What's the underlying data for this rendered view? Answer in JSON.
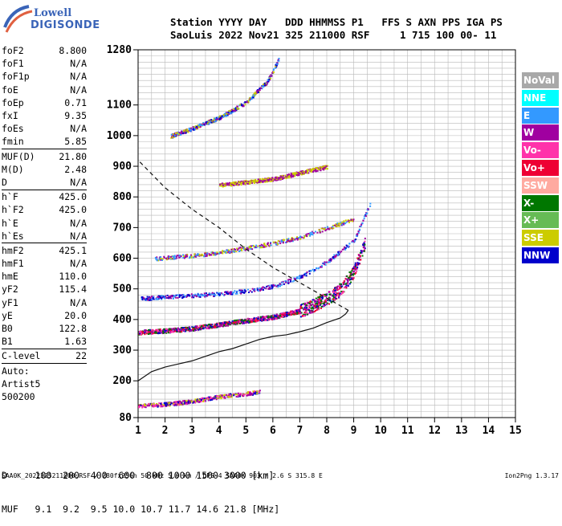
{
  "header": {
    "line1": "Station YYYY DAY   DDD HHMMSS P1   FFS S AXN PPS IGA PS",
    "line2": "SaoLuis 2022 Nov21 325 211000 RSF     1 715 100 00- 11"
  },
  "logo": {
    "line1": "Lowell",
    "line2": "DIGISONDE"
  },
  "params": [
    {
      "label": "foF2",
      "value": "8.800"
    },
    {
      "label": "foF1",
      "value": "N/A"
    },
    {
      "label": "foF1p",
      "value": "N/A"
    },
    {
      "label": "foE",
      "value": "N/A"
    },
    {
      "label": "foEp",
      "value": "0.71"
    },
    {
      "label": "fxI",
      "value": "9.35"
    },
    {
      "label": "foEs",
      "value": "N/A"
    },
    {
      "label": "fmin",
      "value": "5.85"
    },
    {
      "sep": true
    },
    {
      "label": "MUF(D)",
      "value": "21.80"
    },
    {
      "label": "M(D)",
      "value": "2.48"
    },
    {
      "label": "D",
      "value": "N/A"
    },
    {
      "sep": true
    },
    {
      "label": "h`F",
      "value": "425.0"
    },
    {
      "label": "h`F2",
      "value": "425.0"
    },
    {
      "label": "h`E",
      "value": "N/A"
    },
    {
      "label": "h`Es",
      "value": "N/A"
    },
    {
      "sep": true
    },
    {
      "label": "hmF2",
      "value": "425.1"
    },
    {
      "label": "hmF1",
      "value": "N/A"
    },
    {
      "label": "hmE",
      "value": "110.0"
    },
    {
      "label": "yF2",
      "value": "115.4"
    },
    {
      "label": "yF1",
      "value": "N/A"
    },
    {
      "label": "yE",
      "value": "20.0"
    },
    {
      "label": "B0",
      "value": "122.8"
    },
    {
      "label": "B1",
      "value": "1.63"
    },
    {
      "sep": true
    },
    {
      "label": "C-level",
      "value": "22"
    },
    {
      "sep": true
    },
    {
      "label": "Auto:",
      "value": ""
    },
    {
      "label": "Artist5",
      "value": ""
    },
    {
      "label": "500200",
      "value": ""
    }
  ],
  "legend": [
    {
      "name": "NoVal",
      "color": "#a8a8a8"
    },
    {
      "name": "NNE",
      "color": "#00ffff"
    },
    {
      "name": "E",
      "color": "#3399ff"
    },
    {
      "name": "W",
      "color": "#a000a0"
    },
    {
      "name": "Vo-",
      "color": "#ff33aa"
    },
    {
      "name": "Vo+",
      "color": "#ee0033"
    },
    {
      "name": "SSW",
      "color": "#ffaaa0"
    },
    {
      "name": "X-",
      "color": "#007700"
    },
    {
      "name": "X+",
      "color": "#66bb55"
    },
    {
      "name": "SSE",
      "color": "#cccc00"
    },
    {
      "name": "NNW",
      "color": "#0000cc"
    }
  ],
  "table": {
    "line1": "D     100  200  400  600  800 1000 1500 3000 [km]",
    "line2": "MUF   9.1  9.2  9.5 10.0 10.7 11.7 14.6 21.8 [MHz]"
  },
  "footer": "SAA0K_2022325211000.RSF / 280fx256h 50 kHz 5.0 km / DPS-4 SAA0K 903 / 2.6 S 315.8 E",
  "footer_right": "Ion2Png 1.3.17",
  "chart_data": {
    "type": "scatter",
    "title": "",
    "xlabel": "",
    "ylabel": "",
    "xlim": [
      1,
      15
    ],
    "ylim": [
      80,
      1280
    ],
    "xticks": [
      1,
      2,
      3,
      4,
      5,
      6,
      7,
      8,
      9,
      10,
      11,
      12,
      13,
      14,
      15
    ],
    "yticks": [
      80,
      200,
      300,
      400,
      500,
      600,
      700,
      800,
      900,
      1000,
      1100,
      1280
    ],
    "grid": true,
    "echo_traces": [
      {
        "name": "F2 trace",
        "color_mix": [
          "#007700",
          "#ff33aa",
          "#ee0033",
          "#0000cc",
          "#a000a0"
        ],
        "x": [
          1.0,
          2.0,
          3.0,
          4.0,
          5.0,
          6.0,
          7.0,
          7.5,
          8.0,
          8.5,
          9.0,
          9.4
        ],
        "y": [
          360,
          365,
          372,
          385,
          398,
          410,
          430,
          448,
          470,
          500,
          560,
          650
        ]
      },
      {
        "name": "F2 second multiple",
        "color_mix": [
          "#a000a0",
          "#0000cc",
          "#3399ff"
        ],
        "x": [
          1.1,
          2.0,
          3.0,
          4.0,
          5.0,
          6.0,
          7.0,
          8.0,
          9.0,
          9.6
        ],
        "y": [
          470,
          475,
          480,
          485,
          495,
          510,
          540,
          590,
          660,
          780
        ]
      },
      {
        "name": "F2 third multiple",
        "color_mix": [
          "#a000a0",
          "#3399ff",
          "#cccc00"
        ],
        "x": [
          1.6,
          3.0,
          4.0,
          5.0,
          6.0,
          7.0,
          8.0,
          9.0
        ],
        "y": [
          600,
          610,
          620,
          635,
          650,
          670,
          700,
          730
        ]
      },
      {
        "name": "F2 fourth multiple",
        "color_mix": [
          "#a000a0",
          "#cccc00"
        ],
        "x": [
          4.0,
          5.0,
          6.0,
          7.0,
          8.0
        ],
        "y": [
          840,
          850,
          860,
          880,
          900
        ]
      },
      {
        "name": "high trace",
        "color_mix": [
          "#a000a0",
          "#0000cc",
          "#cccc00",
          "#3399ff"
        ],
        "x": [
          2.2,
          3.0,
          4.0,
          5.0,
          5.8,
          6.2
        ],
        "y": [
          1000,
          1025,
          1060,
          1110,
          1180,
          1250
        ]
      },
      {
        "name": "Es layer",
        "color_mix": [
          "#cccc00",
          "#ff33aa",
          "#0000cc",
          "#a000a0"
        ],
        "x": [
          1.0,
          2.0,
          3.0,
          4.0,
          5.0,
          5.5
        ],
        "y": [
          120,
          125,
          135,
          150,
          160,
          165
        ]
      }
    ],
    "profile": {
      "name": "electron density profile",
      "x": [
        1.0,
        1.5,
        2.0,
        2.5,
        3.0,
        3.5,
        4.0,
        4.5,
        5.0,
        5.5,
        6.0,
        6.5,
        7.0,
        7.5,
        8.0,
        8.5,
        8.7,
        8.8
      ],
      "y": [
        200,
        230,
        245,
        255,
        265,
        280,
        295,
        305,
        320,
        335,
        345,
        350,
        360,
        372,
        390,
        405,
        418,
        430
      ]
    },
    "profile_topside": {
      "name": "topside extrapolation",
      "x": [
        8.8,
        8.0,
        7.0,
        6.0,
        5.0,
        4.0,
        3.0,
        2.0,
        1.0
      ],
      "y": [
        430,
        470,
        520,
        570,
        630,
        700,
        760,
        830,
        920
      ]
    }
  }
}
